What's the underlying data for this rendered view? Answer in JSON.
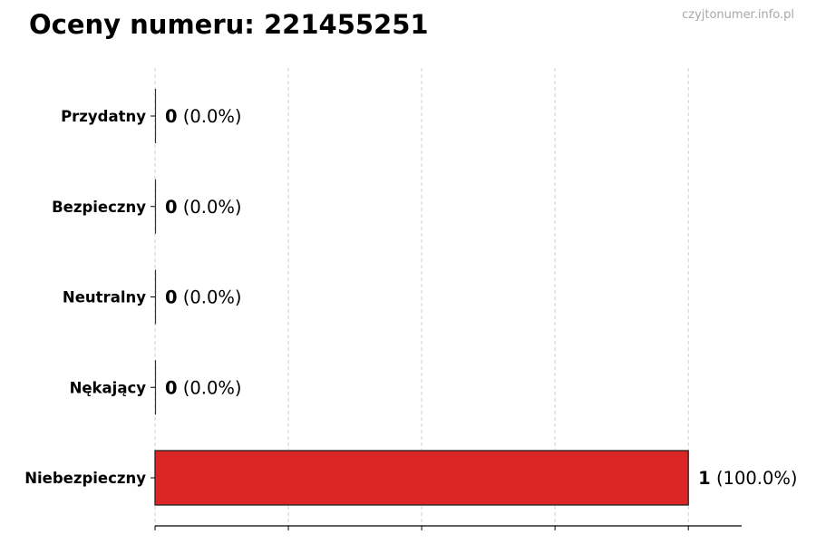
{
  "chart_data": {
    "type": "bar",
    "orientation": "horizontal",
    "title": "Oceny numeru: 221455251",
    "watermark": "czyjtonumer.info.pl",
    "categories": [
      "Przydatny",
      "Bezpieczny",
      "Neutralny",
      "Nękający",
      "Niebezpieczny"
    ],
    "values": [
      0,
      0,
      0,
      0,
      1
    ],
    "value_labels": [
      {
        "count": "0",
        "pct": "(0.0%)"
      },
      {
        "count": "0",
        "pct": "(0.0%)"
      },
      {
        "count": "0",
        "pct": "(0.0%)"
      },
      {
        "count": "0",
        "pct": "(0.0%)"
      },
      {
        "count": "1",
        "pct": "(100.0%)"
      }
    ],
    "bar_colors": [
      "#2e7d32",
      "#2e7d32",
      "#9e9e9e",
      "#ff9800",
      "#dc2626"
    ],
    "xlim": [
      0,
      1.1
    ],
    "xticks": [
      0,
      0.25,
      0.5,
      0.75,
      1.0
    ],
    "xtick_labels_shown": false,
    "grid": "x, dashed",
    "xlabel": "",
    "ylabel": ""
  }
}
